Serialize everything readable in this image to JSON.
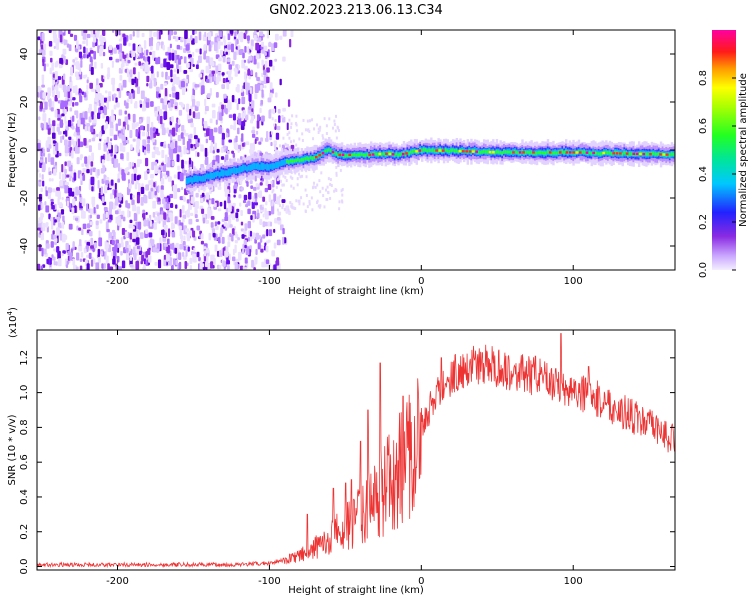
{
  "figure": {
    "title": "GN02.2023.213.06.13.C34"
  },
  "chart_data": [
    {
      "type": "heatmap",
      "xlabel": "Height of straight line (km)",
      "ylabel": "Frequency (Hz)",
      "xlim": [
        -253,
        167
      ],
      "ylim": [
        -50,
        50
      ],
      "xticks": [
        -200,
        -100,
        0,
        100
      ],
      "xtick_labels": [
        "-200",
        "-100",
        "0",
        "100"
      ],
      "yticks": [
        -40,
        -20,
        0,
        20,
        40
      ],
      "ytick_labels": [
        "-40",
        "-20",
        "0",
        "20",
        "40"
      ],
      "grid": false,
      "colorbar": {
        "label": "Normalized spectral amplitude",
        "range": [
          0,
          1
        ],
        "ticks": [
          0.0,
          0.2,
          0.4,
          0.6,
          0.8
        ],
        "tick_labels": [
          "0.0",
          "0.2",
          "0.4",
          "0.6",
          "0.8"
        ],
        "colormap": "rainbow (white-violet-blue-cyan-green-yellow-red-magenta)"
      },
      "ridge": {
        "x": [
          -155,
          -140,
          -120,
          -110,
          -100,
          -90,
          -80,
          -70,
          -62,
          -55,
          -45,
          -35,
          -25,
          -15,
          0,
          50,
          100,
          167
        ],
        "y": [
          -13,
          -11,
          -8,
          -7,
          -7,
          -5,
          -4,
          -3,
          0,
          -2,
          -2,
          -2,
          -1.5,
          -2,
          0,
          -1,
          -1,
          -2
        ]
      },
      "noise_region": {
        "x_range": [
          -253,
          -95
        ],
        "note": "broadband noise across all frequencies"
      }
    },
    {
      "type": "line",
      "xlabel": "Height of straight line (km)",
      "ylabel": "SNR (10 * v/v)",
      "y_multiplier_label": "(x10",
      "y_multiplier_exp": "4",
      "y_multiplier_close": ")",
      "xlim": [
        -253,
        167
      ],
      "ylim": [
        -0.02,
        1.36
      ],
      "xticks": [
        -200,
        -100,
        0,
        100
      ],
      "xtick_labels": [
        "-200",
        "-100",
        "0",
        "100"
      ],
      "yticks": [
        0.0,
        0.2,
        0.4,
        0.6,
        0.8,
        1.0,
        1.2
      ],
      "ytick_labels": [
        "0.0",
        "0.2",
        "0.4",
        "0.6",
        "0.8",
        "1.0",
        "1.2"
      ],
      "grid": false,
      "series": [
        {
          "color": "#ee3333",
          "x": [
            -253,
            -200,
            -120,
            -100,
            -90,
            -80,
            -70,
            -60,
            -50,
            -40,
            -30,
            -20,
            -10,
            0,
            10,
            20,
            30,
            40,
            50,
            60,
            70,
            80,
            90,
            100,
            110,
            120,
            130,
            140,
            150,
            160,
            167
          ],
          "y": [
            0.01,
            0.01,
            0.01,
            0.02,
            0.04,
            0.07,
            0.12,
            0.18,
            0.25,
            0.32,
            0.42,
            0.55,
            0.68,
            0.82,
            0.98,
            1.1,
            1.15,
            1.16,
            1.15,
            1.12,
            1.1,
            1.08,
            1.05,
            1.02,
            0.98,
            0.95,
            0.9,
            0.86,
            0.81,
            0.76,
            0.73
          ],
          "spikes": [
            {
              "x": -75,
              "y": 0.3
            },
            {
              "x": -58,
              "y": 0.45
            },
            {
              "x": -50,
              "y": 0.48
            },
            {
              "x": -46,
              "y": 0.5
            },
            {
              "x": -40,
              "y": 0.72
            },
            {
              "x": -35,
              "y": 0.9
            },
            {
              "x": -27,
              "y": 1.17
            },
            {
              "x": -12,
              "y": 0.98
            },
            {
              "x": 13,
              "y": 1.2
            },
            {
              "x": 40,
              "y": 1.23
            },
            {
              "x": 75,
              "y": 1.21
            },
            {
              "x": 92,
              "y": 1.34
            },
            {
              "x": 110,
              "y": 1.15
            }
          ]
        }
      ]
    }
  ]
}
